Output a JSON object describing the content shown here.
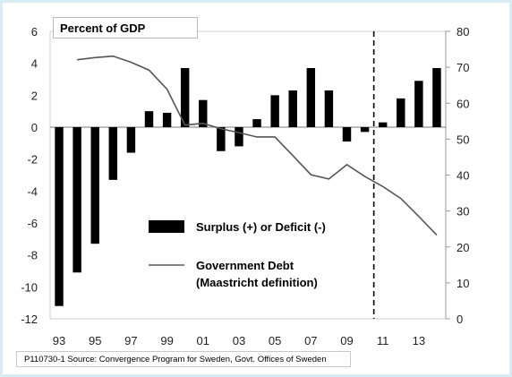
{
  "chart_data": {
    "type": "bar+line",
    "title": "Percent of GDP",
    "x_tick_labels": [
      "93",
      "95",
      "97",
      "99",
      "01",
      "03",
      "05",
      "07",
      "09",
      "11",
      "13"
    ],
    "categories": [
      "1993",
      "1994",
      "1995",
      "1996",
      "1997",
      "1998",
      "1999",
      "2000",
      "2001",
      "2002",
      "2003",
      "2004",
      "2005",
      "2006",
      "2007",
      "2008",
      "2009",
      "2010",
      "2011",
      "2012",
      "2013",
      "2014"
    ],
    "left_axis": {
      "ticks": [
        "6",
        "4",
        "2",
        "0",
        "-2",
        "-4",
        "-6",
        "-8",
        "-10",
        "-12"
      ],
      "ylim": [
        -12,
        6
      ]
    },
    "right_axis": {
      "ticks": [
        "80",
        "70",
        "60",
        "50",
        "40",
        "30",
        "20",
        "10",
        "0"
      ],
      "ylim": [
        0,
        80
      ]
    },
    "series": [
      {
        "name": "Surplus (+) or Deficit (-)",
        "kind": "bar",
        "axis": "left",
        "color": "#000000",
        "values": [
          -11.2,
          -9.1,
          -7.3,
          -3.3,
          -1.6,
          1.0,
          0.9,
          3.7,
          1.7,
          -1.5,
          -1.2,
          0.5,
          2.0,
          2.3,
          3.7,
          2.3,
          -0.9,
          -0.3,
          0.3,
          1.8,
          2.9,
          3.7
        ]
      },
      {
        "name": "Government Debt",
        "name_line2": "(Maastricht definition)",
        "kind": "line",
        "axis": "right",
        "color": "#555555",
        "values": [
          null,
          72.1,
          72.7,
          73.1,
          71.4,
          69.2,
          63.9,
          53.9,
          54.4,
          52.9,
          51.8,
          50.6,
          50.6,
          45.4,
          40.1,
          38.9,
          42.9,
          39.6,
          36.8,
          33.5,
          28.5,
          23.3
        ]
      }
    ],
    "forecast_divider_after": "2010",
    "source": "P110730-1 Source:  Convergence Program for Sweden, Govt. Offices of Sweden"
  }
}
